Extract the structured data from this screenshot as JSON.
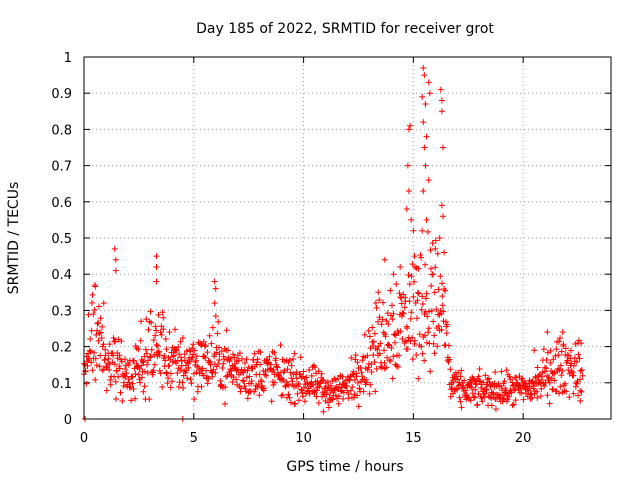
{
  "chart_data": {
    "type": "scatter",
    "title": "Day 185 of 2022, SRMTID for receiver grot",
    "xlabel": "GPS time / hours",
    "ylabel": "SRMTID / TECUs",
    "xlim": [
      0,
      24
    ],
    "ylim": [
      0,
      1
    ],
    "x_ticks": [
      0,
      5,
      10,
      15,
      20
    ],
    "y_ticks": [
      0,
      0.1,
      0.2,
      0.3,
      0.4,
      0.5,
      0.6,
      0.7,
      0.8,
      0.9,
      1
    ],
    "x_tick_labels": [
      "0",
      "5",
      "10",
      "15",
      "20"
    ],
    "y_tick_labels": [
      "0",
      "0.1",
      "0.2",
      "0.3",
      "0.4",
      "0.5",
      "0.6",
      "0.7",
      "0.8",
      "0.9",
      "1"
    ],
    "grid": true,
    "marker": "+",
    "marker_color": "#ff0000",
    "series": [
      {
        "name": "SRMTID",
        "profile": [
          {
            "x": 0.0,
            "y": 0.12
          },
          {
            "x": 0.3,
            "y": 0.22
          },
          {
            "x": 0.6,
            "y": 0.24
          },
          {
            "x": 1.0,
            "y": 0.16
          },
          {
            "x": 1.5,
            "y": 0.15
          },
          {
            "x": 2.0,
            "y": 0.12
          },
          {
            "x": 2.5,
            "y": 0.13
          },
          {
            "x": 3.0,
            "y": 0.18
          },
          {
            "x": 3.5,
            "y": 0.2
          },
          {
            "x": 4.0,
            "y": 0.15
          },
          {
            "x": 4.5,
            "y": 0.16
          },
          {
            "x": 5.0,
            "y": 0.16
          },
          {
            "x": 5.5,
            "y": 0.15
          },
          {
            "x": 6.0,
            "y": 0.17
          },
          {
            "x": 6.5,
            "y": 0.15
          },
          {
            "x": 7.0,
            "y": 0.13
          },
          {
            "x": 7.5,
            "y": 0.12
          },
          {
            "x": 8.0,
            "y": 0.13
          },
          {
            "x": 8.5,
            "y": 0.13
          },
          {
            "x": 9.0,
            "y": 0.12
          },
          {
            "x": 9.5,
            "y": 0.11
          },
          {
            "x": 10.0,
            "y": 0.1
          },
          {
            "x": 10.5,
            "y": 0.09
          },
          {
            "x": 11.0,
            "y": 0.08
          },
          {
            "x": 11.5,
            "y": 0.08
          },
          {
            "x": 12.0,
            "y": 0.09
          },
          {
            "x": 12.5,
            "y": 0.13
          },
          {
            "x": 13.0,
            "y": 0.17
          },
          {
            "x": 13.5,
            "y": 0.22
          },
          {
            "x": 14.0,
            "y": 0.26
          },
          {
            "x": 14.5,
            "y": 0.27
          },
          {
            "x": 15.0,
            "y": 0.3
          },
          {
            "x": 15.5,
            "y": 0.33
          },
          {
            "x": 16.0,
            "y": 0.32
          },
          {
            "x": 16.4,
            "y": 0.3
          },
          {
            "x": 16.7,
            "y": 0.1
          },
          {
            "x": 17.0,
            "y": 0.08
          },
          {
            "x": 18.0,
            "y": 0.08
          },
          {
            "x": 19.0,
            "y": 0.08
          },
          {
            "x": 20.0,
            "y": 0.08
          },
          {
            "x": 20.5,
            "y": 0.09
          },
          {
            "x": 21.0,
            "y": 0.12
          },
          {
            "x": 21.5,
            "y": 0.14
          },
          {
            "x": 22.0,
            "y": 0.15
          },
          {
            "x": 22.7,
            "y": 0.13
          }
        ],
        "scatter_spread": 0.35,
        "sample_interval_hours": 0.02,
        "notable_points": [
          {
            "x": 0.05,
            "y": 0.0
          },
          {
            "x": 4.5,
            "y": 0.0
          },
          {
            "x": 1.4,
            "y": 0.47
          },
          {
            "x": 1.45,
            "y": 0.44
          },
          {
            "x": 1.45,
            "y": 0.41
          },
          {
            "x": 3.3,
            "y": 0.45
          },
          {
            "x": 3.3,
            "y": 0.42
          },
          {
            "x": 3.3,
            "y": 0.38
          },
          {
            "x": 5.95,
            "y": 0.38
          },
          {
            "x": 6.0,
            "y": 0.36
          },
          {
            "x": 5.95,
            "y": 0.32
          },
          {
            "x": 0.5,
            "y": 0.37
          },
          {
            "x": 0.9,
            "y": 0.32
          },
          {
            "x": 2.6,
            "y": 0.27
          },
          {
            "x": 14.8,
            "y": 0.8
          },
          {
            "x": 14.85,
            "y": 0.81
          },
          {
            "x": 14.75,
            "y": 0.7
          },
          {
            "x": 14.7,
            "y": 0.58
          },
          {
            "x": 14.8,
            "y": 0.63
          },
          {
            "x": 14.9,
            "y": 0.55
          },
          {
            "x": 15.0,
            "y": 0.52
          },
          {
            "x": 15.05,
            "y": 0.45
          },
          {
            "x": 15.4,
            "y": 0.89
          },
          {
            "x": 15.45,
            "y": 0.97
          },
          {
            "x": 15.5,
            "y": 0.95
          },
          {
            "x": 15.55,
            "y": 0.87
          },
          {
            "x": 15.45,
            "y": 0.82
          },
          {
            "x": 15.6,
            "y": 0.78
          },
          {
            "x": 15.5,
            "y": 0.75
          },
          {
            "x": 15.55,
            "y": 0.7
          },
          {
            "x": 15.45,
            "y": 0.63
          },
          {
            "x": 15.6,
            "y": 0.55
          },
          {
            "x": 15.4,
            "y": 0.52
          },
          {
            "x": 15.7,
            "y": 0.93
          },
          {
            "x": 15.75,
            "y": 0.9
          },
          {
            "x": 15.7,
            "y": 0.66
          },
          {
            "x": 16.25,
            "y": 0.91
          },
          {
            "x": 16.3,
            "y": 0.88
          },
          {
            "x": 16.3,
            "y": 0.85
          },
          {
            "x": 16.35,
            "y": 0.75
          },
          {
            "x": 16.3,
            "y": 0.59
          },
          {
            "x": 16.35,
            "y": 0.56
          },
          {
            "x": 16.2,
            "y": 0.5
          },
          {
            "x": 16.4,
            "y": 0.46
          },
          {
            "x": 16.0,
            "y": 0.47
          },
          {
            "x": 15.9,
            "y": 0.4
          },
          {
            "x": 13.7,
            "y": 0.44
          },
          {
            "x": 14.1,
            "y": 0.4
          },
          {
            "x": 13.4,
            "y": 0.35
          },
          {
            "x": 14.4,
            "y": 0.42
          },
          {
            "x": 21.1,
            "y": 0.24
          },
          {
            "x": 21.8,
            "y": 0.24
          },
          {
            "x": 22.5,
            "y": 0.21
          },
          {
            "x": 20.5,
            "y": 0.19
          },
          {
            "x": 22.6,
            "y": 0.05
          },
          {
            "x": 10.9,
            "y": 0.02
          }
        ]
      }
    ]
  }
}
